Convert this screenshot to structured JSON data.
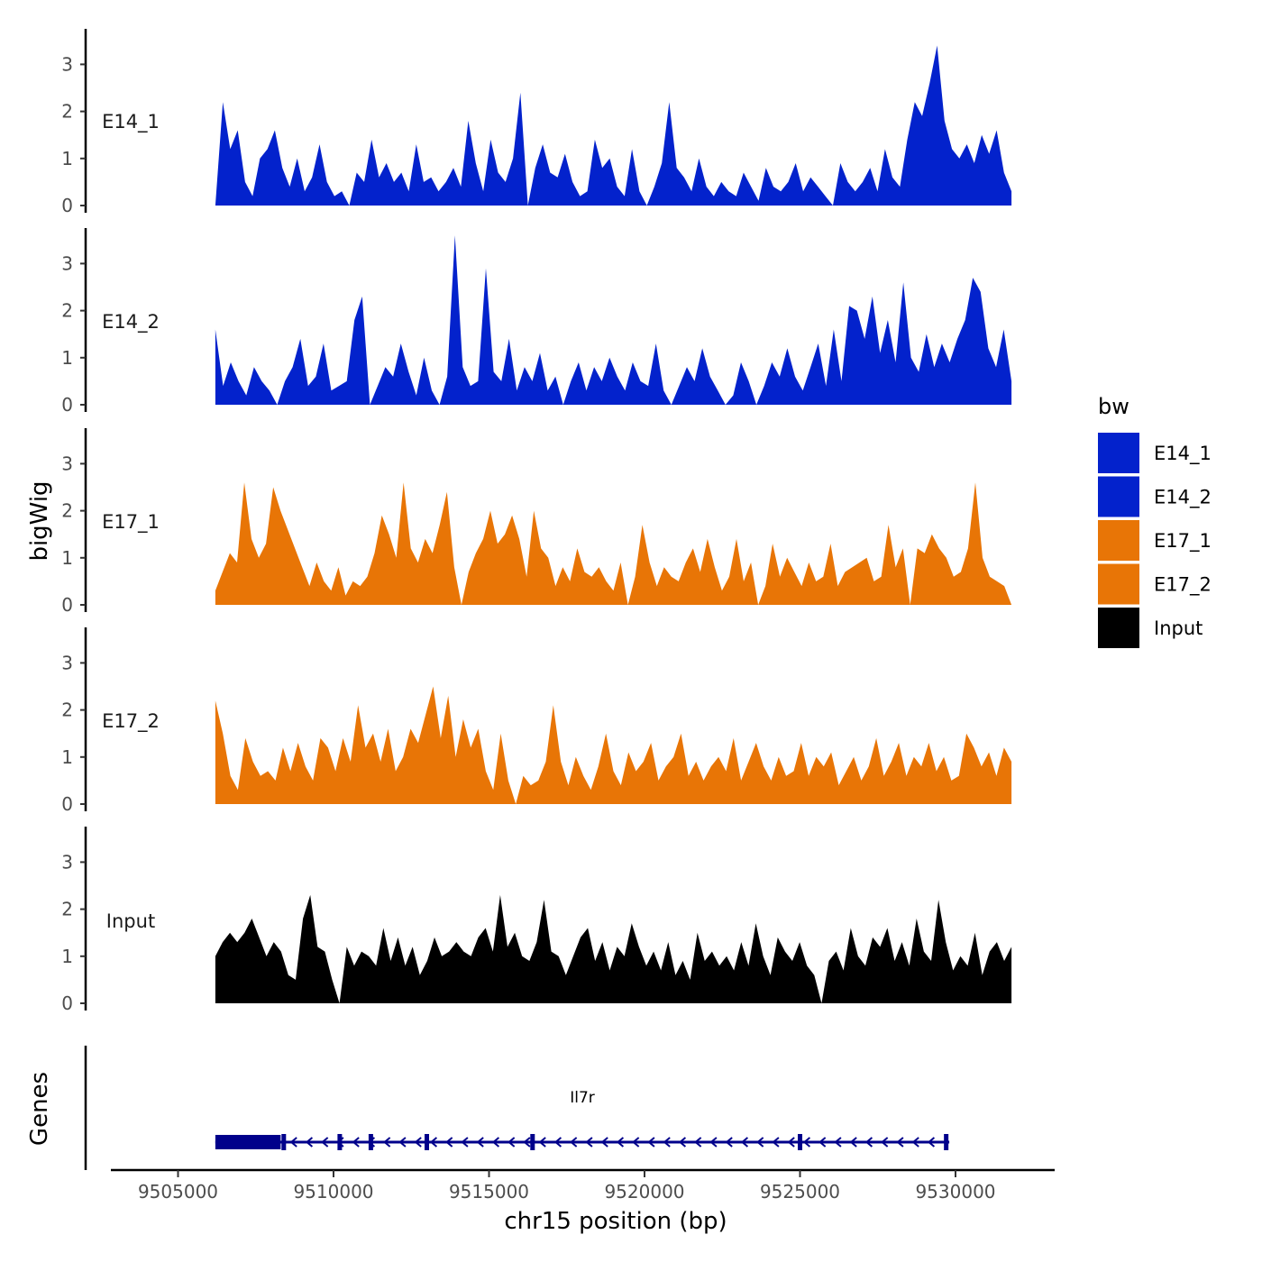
{
  "chart_data": {
    "type": "area",
    "chromosome": "chr15",
    "xlabel": "chr15 position (bp)",
    "ylabel": "bigWig",
    "xlim": [
      9504000,
      9532000
    ],
    "ylim": [
      0,
      3.7
    ],
    "x_ticks": [
      9505000,
      9510000,
      9515000,
      9520000,
      9525000,
      9530000
    ],
    "x_tick_labels": [
      "9505000",
      "9510000",
      "9515000",
      "9520000",
      "9525000",
      "9530000"
    ],
    "y_ticks": [
      0,
      1,
      2,
      3
    ],
    "y_tick_labels": [
      "0",
      "1",
      "2",
      "3"
    ],
    "data_range": [
      9506200,
      9531800
    ],
    "legend": {
      "title": "bw",
      "position": "right",
      "entries": [
        {
          "label": "E14_1",
          "color": "#0322CC"
        },
        {
          "label": "E14_2",
          "color": "#0322CC"
        },
        {
          "label": "E17_1",
          "color": "#E87506"
        },
        {
          "label": "E17_2",
          "color": "#E87506"
        },
        {
          "label": "Input",
          "color": "#000000"
        }
      ]
    },
    "series": [
      {
        "name": "E14_1",
        "color": "#0322CC",
        "values": [
          0,
          2.2,
          1.2,
          1.6,
          0.5,
          0.2,
          1.0,
          1.2,
          1.6,
          0.8,
          0.4,
          1.0,
          0.3,
          0.6,
          1.3,
          0.5,
          0.2,
          0.3,
          0,
          0.7,
          0.5,
          1.4,
          0.6,
          0.9,
          0.5,
          0.7,
          0.3,
          1.3,
          0.5,
          0.6,
          0.3,
          0.5,
          0.8,
          0.4,
          1.8,
          0.9,
          0.3,
          1.4,
          0.7,
          0.5,
          1.0,
          2.4,
          0,
          0.8,
          1.3,
          0.7,
          0.6,
          1.1,
          0.5,
          0.2,
          0.3,
          1.4,
          0.8,
          1.0,
          0.4,
          0.2,
          1.2,
          0.3,
          0,
          0.4,
          0.9,
          2.2,
          0.8,
          0.6,
          0.3,
          1.0,
          0.4,
          0.2,
          0.5,
          0.3,
          0.2,
          0.7,
          0.4,
          0.1,
          0.8,
          0.4,
          0.3,
          0.5,
          0.9,
          0.3,
          0.6,
          0.4,
          0.2,
          0,
          0.9,
          0.5,
          0.3,
          0.5,
          0.8,
          0.3,
          1.2,
          0.6,
          0.4,
          1.4,
          2.2,
          1.9,
          2.6,
          3.4,
          1.8,
          1.2,
          1.0,
          1.3,
          0.9,
          1.5,
          1.1,
          1.6,
          0.7,
          0.3
        ]
      },
      {
        "name": "E14_2",
        "color": "#0322CC",
        "values": [
          1.6,
          0.4,
          0.9,
          0.5,
          0.2,
          0.8,
          0.5,
          0.3,
          0,
          0.5,
          0.8,
          1.4,
          0.4,
          0.6,
          1.3,
          0.3,
          0.4,
          0.5,
          1.8,
          2.3,
          0,
          0.4,
          0.8,
          0.6,
          1.3,
          0.7,
          0.2,
          1.0,
          0.3,
          0,
          0.6,
          3.6,
          0.8,
          0.4,
          0.5,
          2.9,
          0.7,
          0.5,
          1.4,
          0.3,
          0.8,
          0.5,
          1.1,
          0.3,
          0.6,
          0,
          0.5,
          0.9,
          0.3,
          0.8,
          0.5,
          1.0,
          0.6,
          0.3,
          0.9,
          0.5,
          0.4,
          1.3,
          0.3,
          0,
          0.4,
          0.8,
          0.5,
          1.2,
          0.6,
          0.3,
          0,
          0.2,
          0.9,
          0.5,
          0,
          0.4,
          0.9,
          0.6,
          1.2,
          0.6,
          0.3,
          0.8,
          1.3,
          0.4,
          1.6,
          0.5,
          2.1,
          2.0,
          1.4,
          2.3,
          1.1,
          1.8,
          0.9,
          2.6,
          1.0,
          0.7,
          1.5,
          0.8,
          1.3,
          0.9,
          1.4,
          1.8,
          2.7,
          2.4,
          1.2,
          0.8,
          1.6,
          0.5
        ]
      },
      {
        "name": "E17_1",
        "color": "#E87506",
        "values": [
          0.3,
          0.7,
          1.1,
          0.9,
          2.6,
          1.4,
          1.0,
          1.3,
          2.5,
          2.0,
          1.6,
          1.2,
          0.8,
          0.4,
          0.9,
          0.5,
          0.3,
          0.8,
          0.2,
          0.5,
          0.4,
          0.6,
          1.1,
          1.9,
          1.5,
          1.0,
          2.6,
          1.2,
          0.9,
          1.4,
          1.1,
          1.7,
          2.4,
          0.8,
          0,
          0.7,
          1.1,
          1.4,
          2.0,
          1.3,
          1.5,
          1.9,
          1.4,
          0.6,
          2.0,
          1.2,
          1.0,
          0.4,
          0.8,
          0.5,
          1.2,
          0.7,
          0.6,
          0.8,
          0.5,
          0.3,
          0.9,
          0,
          0.6,
          1.7,
          0.9,
          0.4,
          0.8,
          0.6,
          0.5,
          0.9,
          1.2,
          0.7,
          1.4,
          0.8,
          0.3,
          0.6,
          1.4,
          0.5,
          0.9,
          0,
          0.4,
          1.3,
          0.6,
          1.0,
          0.7,
          0.4,
          0.9,
          0.5,
          0.6,
          1.3,
          0.4,
          0.7,
          0.8,
          0.9,
          1.0,
          0.5,
          0.6,
          1.7,
          0.8,
          1.2,
          0,
          1.2,
          1.1,
          1.5,
          1.2,
          1.0,
          0.6,
          0.7,
          1.2,
          2.6,
          1.0,
          0.6,
          0.5,
          0.4,
          0
        ]
      },
      {
        "name": "E17_2",
        "color": "#E87506",
        "values": [
          2.2,
          1.5,
          0.6,
          0.3,
          1.4,
          0.9,
          0.6,
          0.7,
          0.5,
          1.2,
          0.7,
          1.3,
          0.8,
          0.5,
          1.4,
          1.2,
          0.7,
          1.4,
          0.9,
          2.1,
          1.2,
          1.5,
          0.9,
          1.6,
          0.7,
          1.0,
          1.6,
          1.3,
          1.9,
          2.5,
          1.4,
          2.3,
          1.0,
          1.8,
          1.2,
          1.6,
          0.7,
          0.3,
          1.5,
          0.5,
          0,
          0.6,
          0.4,
          0.5,
          0.9,
          2.1,
          0.9,
          0.4,
          1.0,
          0.6,
          0.3,
          0.8,
          1.5,
          0.7,
          0.4,
          1.1,
          0.7,
          0.9,
          1.3,
          0.5,
          0.8,
          1.0,
          1.5,
          0.6,
          0.9,
          0.5,
          0.8,
          1.0,
          0.7,
          1.4,
          0.5,
          0.9,
          1.3,
          0.8,
          0.5,
          1.0,
          0.6,
          0.7,
          1.3,
          0.6,
          1.0,
          0.8,
          1.1,
          0.4,
          0.7,
          1.0,
          0.5,
          0.8,
          1.4,
          0.6,
          0.9,
          1.3,
          0.6,
          1.0,
          0.8,
          1.3,
          0.7,
          1.0,
          0.5,
          0.6,
          1.5,
          1.2,
          0.8,
          1.1,
          0.6,
          1.2,
          0.9
        ]
      },
      {
        "name": "Input",
        "color": "#000000",
        "values": [
          1.0,
          1.3,
          1.5,
          1.3,
          1.5,
          1.8,
          1.4,
          1.0,
          1.3,
          1.1,
          0.6,
          0.5,
          1.8,
          2.3,
          1.2,
          1.1,
          0.5,
          0,
          1.2,
          0.8,
          1.1,
          1.0,
          0.8,
          1.6,
          0.9,
          1.4,
          0.8,
          1.2,
          0.6,
          0.9,
          1.4,
          1.0,
          1.1,
          1.3,
          1.1,
          1.0,
          1.4,
          1.6,
          1.1,
          2.3,
          1.2,
          1.5,
          1.0,
          0.9,
          1.3,
          2.2,
          1.1,
          1.0,
          0.6,
          1.0,
          1.4,
          1.6,
          0.9,
          1.3,
          0.7,
          1.2,
          1.0,
          1.7,
          1.2,
          0.8,
          1.1,
          0.7,
          1.3,
          0.6,
          0.9,
          0.5,
          1.5,
          0.9,
          1.1,
          0.8,
          1.0,
          0.7,
          1.3,
          0.8,
          1.7,
          1.0,
          0.6,
          1.4,
          1.1,
          0.9,
          1.3,
          0.8,
          0.6,
          0,
          0.9,
          1.1,
          0.7,
          1.6,
          1.0,
          0.8,
          1.4,
          1.2,
          1.6,
          0.9,
          1.3,
          0.8,
          1.8,
          1.1,
          0.9,
          2.2,
          1.3,
          0.7,
          1.0,
          0.8,
          1.5,
          0.6,
          1.1,
          1.3,
          0.9,
          1.2
        ]
      }
    ],
    "genes_track": {
      "label": "Genes",
      "gene_name": "Il7r",
      "strand": "-",
      "start": 9506200,
      "end": 9529800,
      "thick_block": [
        9506200,
        9508300
      ],
      "exons": [
        9508400,
        9510200,
        9511200,
        9513000,
        9516400,
        9525000,
        9529700
      ]
    }
  }
}
